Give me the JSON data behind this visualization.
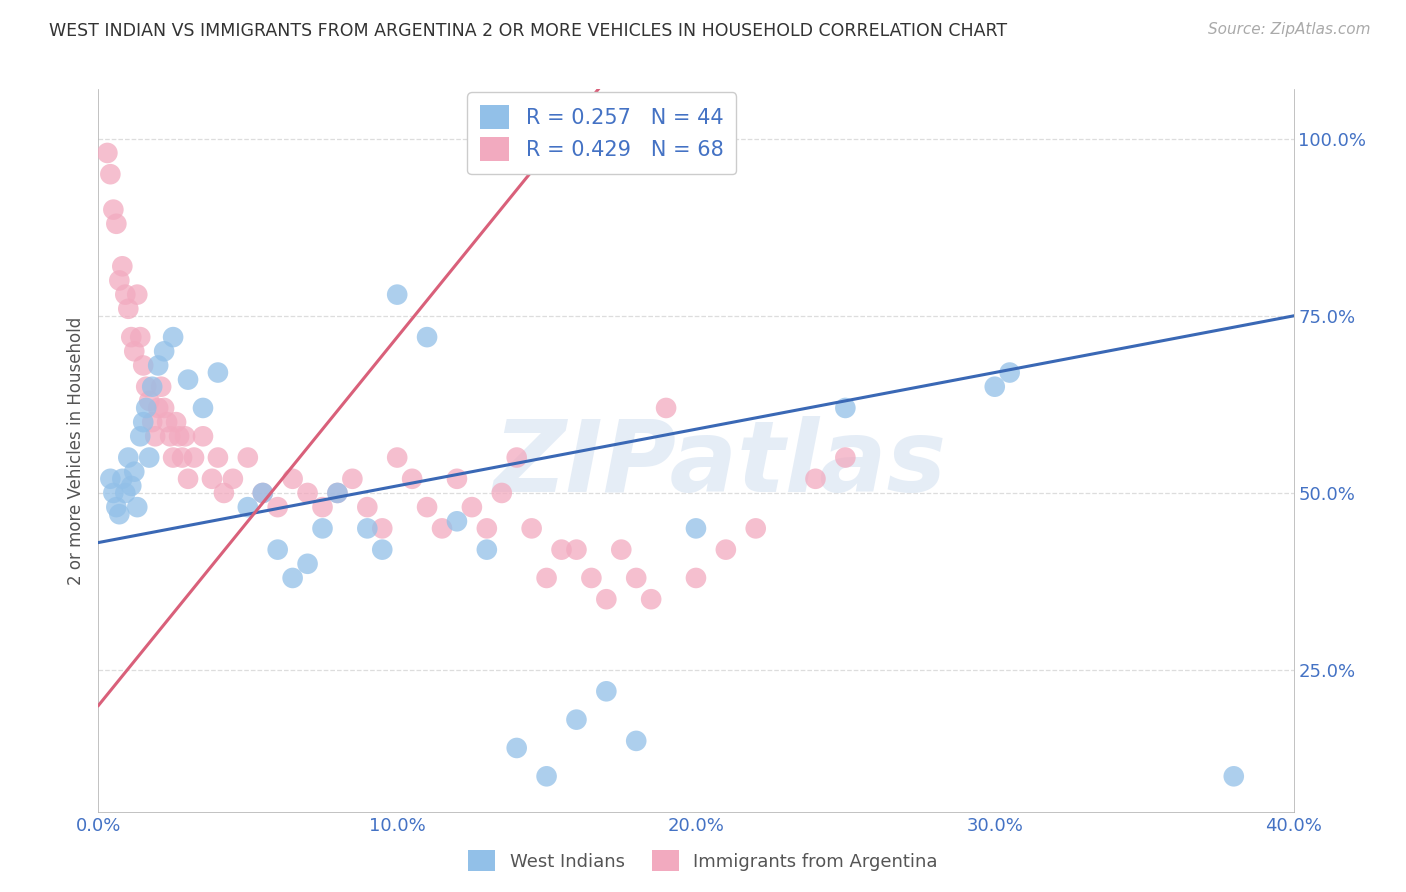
{
  "title": "WEST INDIAN VS IMMIGRANTS FROM ARGENTINA 2 OR MORE VEHICLES IN HOUSEHOLD CORRELATION CHART",
  "source": "Source: ZipAtlas.com",
  "xlabel_values": [
    0.0,
    10.0,
    20.0,
    30.0,
    40.0
  ],
  "ylabel_values": [
    25.0,
    50.0,
    75.0,
    100.0
  ],
  "ylabel_label": "2 or more Vehicles in Household",
  "xlim": [
    0.0,
    40.0
  ],
  "ylim": [
    5.0,
    107.0
  ],
  "watermark_text": "ZIPatlas",
  "legend_labels": [
    "West Indians",
    "Immigrants from Argentina"
  ],
  "blue_R": 0.257,
  "blue_N": 44,
  "pink_R": 0.429,
  "pink_N": 68,
  "blue_color": "#92C0E8",
  "pink_color": "#F2AABF",
  "blue_line_color": "#3A68B5",
  "pink_line_color": "#D9607A",
  "blue_scatter": [
    [
      0.4,
      52
    ],
    [
      0.5,
      50
    ],
    [
      0.6,
      48
    ],
    [
      0.7,
      47
    ],
    [
      0.8,
      52
    ],
    [
      0.9,
      50
    ],
    [
      1.0,
      55
    ],
    [
      1.1,
      51
    ],
    [
      1.2,
      53
    ],
    [
      1.3,
      48
    ],
    [
      1.4,
      58
    ],
    [
      1.5,
      60
    ],
    [
      1.6,
      62
    ],
    [
      1.7,
      55
    ],
    [
      1.8,
      65
    ],
    [
      2.0,
      68
    ],
    [
      2.2,
      70
    ],
    [
      2.5,
      72
    ],
    [
      3.0,
      66
    ],
    [
      3.5,
      62
    ],
    [
      4.0,
      67
    ],
    [
      5.0,
      48
    ],
    [
      5.5,
      50
    ],
    [
      6.0,
      42
    ],
    [
      6.5,
      38
    ],
    [
      7.0,
      40
    ],
    [
      7.5,
      45
    ],
    [
      8.0,
      50
    ],
    [
      9.0,
      45
    ],
    [
      9.5,
      42
    ],
    [
      10.0,
      78
    ],
    [
      11.0,
      72
    ],
    [
      12.0,
      46
    ],
    [
      13.0,
      42
    ],
    [
      14.0,
      14
    ],
    [
      15.0,
      10
    ],
    [
      16.0,
      18
    ],
    [
      17.0,
      22
    ],
    [
      18.0,
      15
    ],
    [
      20.0,
      45
    ],
    [
      25.0,
      62
    ],
    [
      30.0,
      65
    ],
    [
      30.5,
      67
    ],
    [
      38.0,
      10
    ]
  ],
  "pink_scatter": [
    [
      0.3,
      98
    ],
    [
      0.4,
      95
    ],
    [
      0.5,
      90
    ],
    [
      0.6,
      88
    ],
    [
      0.7,
      80
    ],
    [
      0.8,
      82
    ],
    [
      0.9,
      78
    ],
    [
      1.0,
      76
    ],
    [
      1.1,
      72
    ],
    [
      1.2,
      70
    ],
    [
      1.3,
      78
    ],
    [
      1.4,
      72
    ],
    [
      1.5,
      68
    ],
    [
      1.6,
      65
    ],
    [
      1.7,
      63
    ],
    [
      1.8,
      60
    ],
    [
      1.9,
      58
    ],
    [
      2.0,
      62
    ],
    [
      2.1,
      65
    ],
    [
      2.2,
      62
    ],
    [
      2.3,
      60
    ],
    [
      2.4,
      58
    ],
    [
      2.5,
      55
    ],
    [
      2.6,
      60
    ],
    [
      2.7,
      58
    ],
    [
      2.8,
      55
    ],
    [
      2.9,
      58
    ],
    [
      3.0,
      52
    ],
    [
      3.2,
      55
    ],
    [
      3.5,
      58
    ],
    [
      3.8,
      52
    ],
    [
      4.0,
      55
    ],
    [
      4.2,
      50
    ],
    [
      4.5,
      52
    ],
    [
      5.0,
      55
    ],
    [
      5.5,
      50
    ],
    [
      6.0,
      48
    ],
    [
      6.5,
      52
    ],
    [
      7.0,
      50
    ],
    [
      7.5,
      48
    ],
    [
      8.0,
      50
    ],
    [
      8.5,
      52
    ],
    [
      9.0,
      48
    ],
    [
      9.5,
      45
    ],
    [
      10.0,
      55
    ],
    [
      10.5,
      52
    ],
    [
      11.0,
      48
    ],
    [
      11.5,
      45
    ],
    [
      12.0,
      52
    ],
    [
      12.5,
      48
    ],
    [
      13.0,
      45
    ],
    [
      13.5,
      50
    ],
    [
      14.0,
      55
    ],
    [
      14.5,
      45
    ],
    [
      15.0,
      38
    ],
    [
      15.5,
      42
    ],
    [
      16.0,
      42
    ],
    [
      16.5,
      38
    ],
    [
      17.0,
      35
    ],
    [
      17.5,
      42
    ],
    [
      18.0,
      38
    ],
    [
      18.5,
      35
    ],
    [
      19.0,
      62
    ],
    [
      20.0,
      38
    ],
    [
      21.0,
      42
    ],
    [
      22.0,
      45
    ],
    [
      24.0,
      52
    ],
    [
      25.0,
      55
    ]
  ],
  "blue_line": [
    0.0,
    43.0,
    40.0,
    75.0
  ],
  "pink_line": [
    0.0,
    20.0,
    10.0,
    72.0
  ],
  "grid_color": "#DDDDDD",
  "background_color": "#FFFFFF"
}
